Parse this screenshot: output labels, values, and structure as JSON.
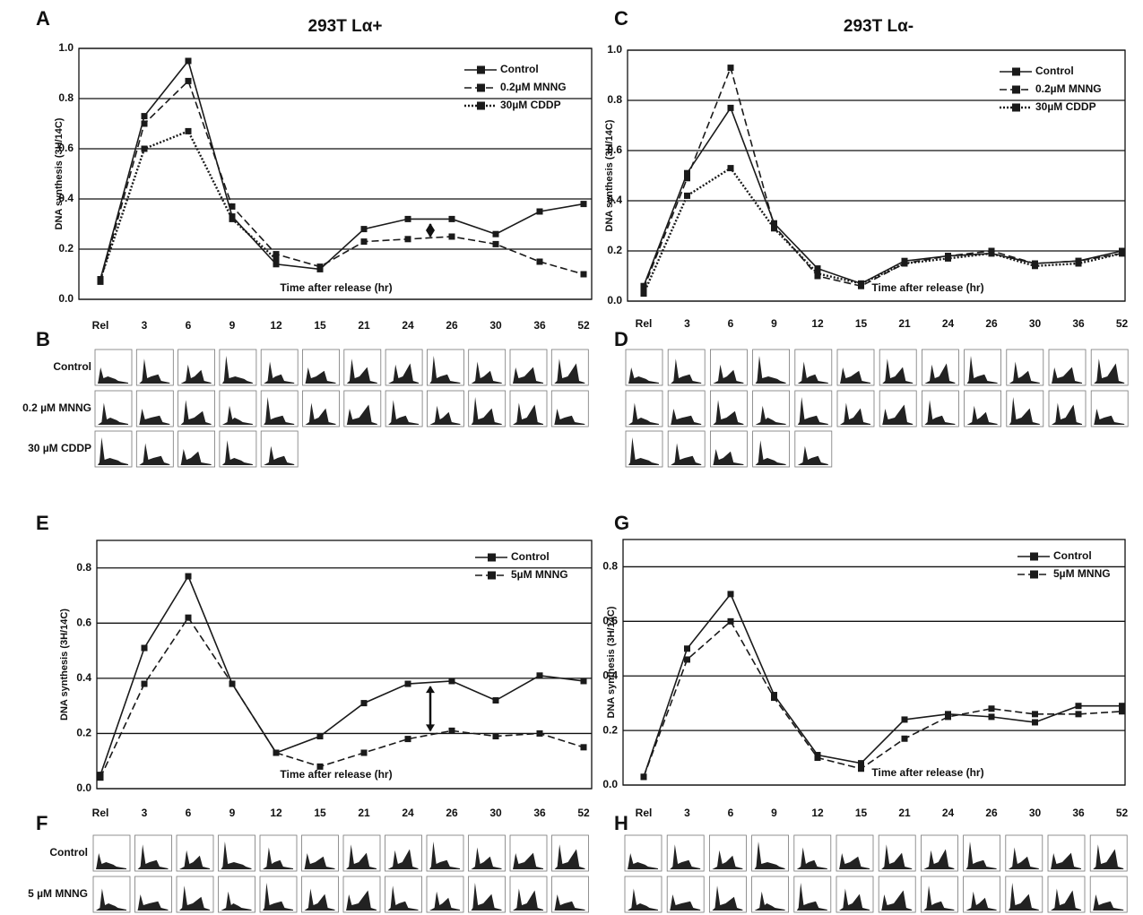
{
  "chart_data": [
    {
      "type": "line",
      "panel": "A",
      "title": "293T Lα+",
      "y_label": "DNA synthesis (3H/14C)",
      "annotation": "Time after release (hr)",
      "categories": [
        "Rel",
        "3",
        "6",
        "9",
        "12",
        "15",
        "21",
        "24",
        "26",
        "30",
        "36",
        "52"
      ],
      "ylim": [
        0,
        1
      ],
      "yticks": [
        {
          "value": 0,
          "label": "0.0"
        },
        0.2,
        0.4,
        0.6,
        0.8,
        {
          "value": 1,
          "label": "1.0"
        }
      ],
      "grid": true,
      "legend": "upper right",
      "series": [
        {
          "name": "Control",
          "color": "#1a1a1a",
          "style": "solid",
          "values": [
            0.08,
            0.73,
            0.95,
            0.33,
            0.14,
            0.12,
            0.28,
            0.32,
            0.32,
            0.26,
            0.35,
            0.38
          ]
        },
        {
          "name": "0.2µM MNNG",
          "color": "#1a1a1a",
          "style": "dashed",
          "values": [
            0.07,
            0.7,
            0.87,
            0.37,
            0.18,
            0.13,
            0.23,
            0.24,
            0.25,
            0.22,
            0.15,
            0.1
          ]
        },
        {
          "name": "30µM CDDP",
          "color": "#1a1a1a",
          "style": "dotted",
          "values": [
            0.08,
            0.6,
            0.67,
            0.32,
            0.16,
            null,
            null,
            null,
            null,
            null,
            null,
            null
          ]
        }
      ]
    },
    {
      "type": "line",
      "panel": "C",
      "title": "293T Lα-",
      "y_label": "DNA synthesis (3H/14C)",
      "annotation": "Time after release (hr)",
      "categories": [
        "Rel",
        "3",
        "6",
        "9",
        "12",
        "15",
        "21",
        "24",
        "26",
        "30",
        "36",
        "52"
      ],
      "ylim": [
        0,
        1
      ],
      "yticks": [
        {
          "value": 0,
          "label": "0.0"
        },
        0.2,
        0.4,
        0.6,
        0.8,
        {
          "value": 1,
          "label": "1.0"
        }
      ],
      "grid": true,
      "legend": "upper right",
      "series": [
        {
          "name": "Control",
          "color": "#1a1a1a",
          "style": "solid",
          "values": [
            0.06,
            0.51,
            0.77,
            0.31,
            0.13,
            0.07,
            0.16,
            0.18,
            0.19,
            0.15,
            0.16,
            0.2
          ]
        },
        {
          "name": "0.2µM MNNG",
          "color": "#1a1a1a",
          "style": "dashed",
          "values": [
            0.05,
            0.49,
            0.93,
            0.3,
            0.1,
            0.06,
            0.15,
            0.18,
            0.2,
            0.15,
            0.16,
            0.19
          ]
        },
        {
          "name": "30µM CDDP",
          "color": "#1a1a1a",
          "style": "dotted",
          "values": [
            0.03,
            0.42,
            0.53,
            0.29,
            0.11,
            0.07,
            0.15,
            0.17,
            0.19,
            0.14,
            0.15,
            0.19
          ]
        }
      ]
    },
    {
      "type": "line",
      "panel": "E",
      "y_label": "DNA synthesis (3H/14C)",
      "annotation": "Time after release (hr)",
      "categories": [
        "Rel",
        "3",
        "6",
        "9",
        "12",
        "15",
        "21",
        "24",
        "26",
        "30",
        "36",
        "52"
      ],
      "ylim": [
        0,
        0.9
      ],
      "yticks": [
        {
          "value": 0,
          "label": "0.0"
        },
        0.2,
        0.4,
        0.6,
        0.8
      ],
      "grid": true,
      "legend": "upper right",
      "series": [
        {
          "name": "Control",
          "color": "#1a1a1a",
          "style": "solid",
          "values": [
            0.05,
            0.51,
            0.77,
            0.38,
            0.13,
            0.19,
            0.31,
            0.38,
            0.39,
            0.32,
            0.41,
            0.39
          ]
        },
        {
          "name": "5µM MNNG",
          "color": "#1a1a1a",
          "style": "dashed",
          "values": [
            0.04,
            0.38,
            0.62,
            0.38,
            0.13,
            0.08,
            0.13,
            0.18,
            0.21,
            0.19,
            0.2,
            0.15
          ]
        }
      ]
    },
    {
      "type": "line",
      "panel": "G",
      "y_label": "DNA synthesis (3H/14C)",
      "annotation": "Time after release (hr)",
      "categories": [
        "Rel",
        "3",
        "6",
        "9",
        "12",
        "15",
        "21",
        "24",
        "26",
        "30",
        "36",
        "52"
      ],
      "ylim": [
        0,
        0.9
      ],
      "yticks": [
        {
          "value": 0,
          "label": "0.0"
        },
        0.2,
        0.4,
        0.6,
        0.8
      ],
      "grid": true,
      "legend": "upper right",
      "series": [
        {
          "name": "Control",
          "color": "#1a1a1a",
          "style": "solid",
          "values": [
            0.03,
            0.5,
            0.7,
            0.33,
            0.11,
            0.08,
            0.24,
            0.26,
            0.25,
            0.23,
            0.29,
            0.29
          ]
        },
        {
          "name": "5µM MNNG",
          "color": "#1a1a1a",
          "style": "dashed",
          "values": [
            0.03,
            0.46,
            0.6,
            0.32,
            0.1,
            0.06,
            0.17,
            0.25,
            0.28,
            0.26,
            0.26,
            0.27
          ]
        }
      ]
    }
  ],
  "histograms": [
    {
      "panel": "B",
      "row_labels": [
        "Control",
        "0.2 µM MNNG",
        "30 µM CDDP"
      ]
    },
    {
      "panel": "D"
    },
    {
      "panel": "F",
      "row_labels": [
        "Control",
        "5 µM MNNG"
      ]
    },
    {
      "panel": "H"
    }
  ]
}
